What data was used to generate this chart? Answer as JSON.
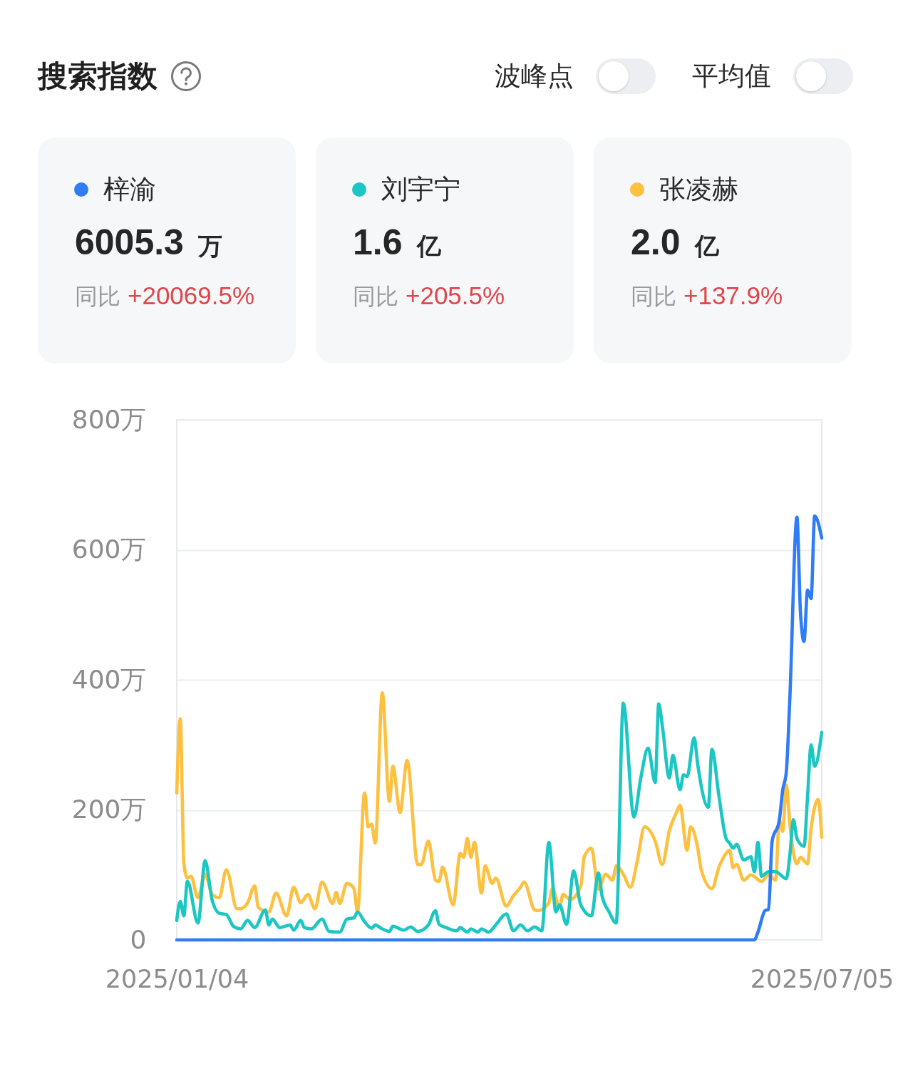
{
  "chart_data": {
    "type": "line",
    "title": "搜索指数",
    "annotations": [
      "波峰点",
      "平均值",
      "6005.3 万",
      "同比 +20069.5%",
      "1.6 亿",
      "同比 +205.5%",
      "2.0 亿",
      "同比 +137.9%"
    ],
    "xlim": [
      "2025-01-04",
      "2025-07-05"
    ],
    "xticks": [
      {
        "value": "2025-01-04",
        "label": "2025/01/04"
      },
      {
        "value": "2025-07-05",
        "label": "2025/07/05"
      }
    ],
    "ylim": [
      0,
      800
    ],
    "yticks": [
      0,
      {
        "value": 200,
        "label": "200万"
      },
      {
        "value": 400,
        "label": "400万"
      },
      {
        "value": 600,
        "label": "600万"
      },
      {
        "value": 800,
        "label": "800万"
      }
    ],
    "grid": "y",
    "legend": "top",
    "series": [
      {
        "name": "梓渝",
        "color": "#2f7cf6",
        "x": [
          "2025-01-04",
          "2025-06-16",
          "2025-06-17",
          "2025-06-19",
          "2025-06-20",
          "2025-06-21",
          "2025-06-23",
          "2025-06-24",
          "2025-06-25",
          "2025-06-26",
          "2025-06-28",
          "2025-06-29",
          "2025-06-30",
          "2025-07-01",
          "2025-07-02",
          "2025-07-03",
          "2025-07-05"
        ],
        "values": [
          0,
          0,
          12,
          45,
          47,
          152,
          183,
          231,
          258,
          372,
          650,
          503,
          459,
          538,
          525,
          652,
          618
        ]
      },
      {
        "name": "刘宇宁",
        "color": "#1cc6c3",
        "x": [
          "2025-01-04",
          "2025-01-05",
          "2025-01-06",
          "2025-01-07",
          "2025-01-10",
          "2025-01-12",
          "2025-01-14",
          "2025-01-16",
          "2025-01-18",
          "2025-01-20",
          "2025-01-22",
          "2025-01-24",
          "2025-01-26",
          "2025-01-29",
          "2025-01-30",
          "2025-01-31",
          "2025-02-02",
          "2025-02-05",
          "2025-02-06",
          "2025-02-08",
          "2025-02-09",
          "2025-02-11",
          "2025-02-14",
          "2025-02-16",
          "2025-02-19",
          "2025-02-21",
          "2025-02-23",
          "2025-02-24",
          "2025-02-26",
          "2025-02-28",
          "2025-03-01",
          "2025-03-03",
          "2025-03-05",
          "2025-03-06",
          "2025-03-09",
          "2025-03-11",
          "2025-03-13",
          "2025-03-16",
          "2025-03-18",
          "2025-03-19",
          "2025-03-21",
          "2025-03-24",
          "2025-03-25",
          "2025-03-27",
          "2025-03-28",
          "2025-03-30",
          "2025-03-31",
          "2025-04-02",
          "2025-04-04",
          "2025-04-07",
          "2025-04-09",
          "2025-04-11",
          "2025-04-13",
          "2025-04-15",
          "2025-04-17",
          "2025-04-19",
          "2025-04-21",
          "2025-04-22",
          "2025-04-24",
          "2025-04-26",
          "2025-04-28",
          "2025-05-01",
          "2025-05-03",
          "2025-05-04",
          "2025-05-06",
          "2025-05-08",
          "2025-05-10",
          "2025-05-13",
          "2025-05-15",
          "2025-05-17",
          "2025-05-19",
          "2025-05-20",
          "2025-05-21",
          "2025-05-23",
          "2025-05-24",
          "2025-05-26",
          "2025-05-27",
          "2025-05-28",
          "2025-05-30",
          "2025-05-31",
          "2025-06-03",
          "2025-06-04",
          "2025-06-06",
          "2025-06-08",
          "2025-06-09",
          "2025-06-10",
          "2025-06-11",
          "2025-06-13",
          "2025-06-15",
          "2025-06-16",
          "2025-06-17",
          "2025-06-18",
          "2025-06-20",
          "2025-06-22",
          "2025-06-25",
          "2025-06-26",
          "2025-06-27",
          "2025-06-28",
          "2025-06-30",
          "2025-07-01",
          "2025-07-02",
          "2025-07-03",
          "2025-07-05"
        ],
        "values": [
          30,
          59,
          37,
          90,
          26,
          122,
          61,
          41,
          39,
          21,
          17,
          30,
          19,
          46,
          23,
          32,
          19,
          23,
          15,
          30,
          19,
          17,
          32,
          13,
          12,
          32,
          34,
          43,
          28,
          18,
          23,
          17,
          13,
          21,
          15,
          20,
          13,
          23,
          45,
          24,
          19,
          14,
          19,
          12,
          17,
          12,
          17,
          12,
          23,
          40,
          14,
          23,
          14,
          20,
          14,
          150,
          43,
          54,
          24,
          106,
          54,
          37,
          103,
          68,
          43,
          26,
          364,
          189,
          251,
          295,
          242,
          363,
          330,
          249,
          284,
          231,
          254,
          251,
          311,
          270,
          204,
          293,
          221,
          156,
          149,
          141,
          147,
          123,
          128,
          105,
          150,
          98,
          105,
          105,
          94,
          130,
          185,
          156,
          144,
          221,
          300,
          267,
          319
        ]
      },
      {
        "name": "张凌赫",
        "color": "#fdc03f",
        "x": [
          "2025-01-04",
          "2025-01-05",
          "2025-01-06",
          "2025-01-07",
          "2025-01-08",
          "2025-01-10",
          "2025-01-12",
          "2025-01-14",
          "2025-01-16",
          "2025-01-18",
          "2025-01-21",
          "2025-01-22",
          "2025-01-24",
          "2025-01-26",
          "2025-01-27",
          "2025-01-30",
          "2025-02-01",
          "2025-02-04",
          "2025-02-06",
          "2025-02-08",
          "2025-02-10",
          "2025-02-12",
          "2025-02-14",
          "2025-02-17",
          "2025-02-18",
          "2025-02-19",
          "2025-02-21",
          "2025-02-23",
          "2025-02-24",
          "2025-02-26",
          "2025-02-27",
          "2025-02-28",
          "2025-03-01",
          "2025-03-03",
          "2025-03-05",
          "2025-03-06",
          "2025-03-08",
          "2025-03-10",
          "2025-03-13",
          "2025-03-14",
          "2025-03-16",
          "2025-03-18",
          "2025-03-19",
          "2025-03-20",
          "2025-03-23",
          "2025-03-25",
          "2025-03-26",
          "2025-03-27",
          "2025-03-28",
          "2025-03-29",
          "2025-03-31",
          "2025-04-01",
          "2025-04-03",
          "2025-04-04",
          "2025-04-07",
          "2025-04-09",
          "2025-04-11",
          "2025-04-12",
          "2025-04-15",
          "2025-04-16",
          "2025-04-19",
          "2025-04-20",
          "2025-04-22",
          "2025-04-23",
          "2025-04-25",
          "2025-04-28",
          "2025-04-29",
          "2025-05-01",
          "2025-05-03",
          "2025-05-05",
          "2025-05-07",
          "2025-05-08",
          "2025-05-10",
          "2025-05-12",
          "2025-05-14",
          "2025-05-16",
          "2025-05-19",
          "2025-05-21",
          "2025-05-23",
          "2025-05-25",
          "2025-05-26",
          "2025-05-28",
          "2025-05-29",
          "2025-05-31",
          "2025-06-01",
          "2025-06-04",
          "2025-06-06",
          "2025-06-08",
          "2025-06-09",
          "2025-06-10",
          "2025-06-11",
          "2025-06-13",
          "2025-06-15",
          "2025-06-18",
          "2025-06-20",
          "2025-06-22",
          "2025-06-23",
          "2025-06-24",
          "2025-06-25",
          "2025-06-26",
          "2025-06-28",
          "2025-06-29",
          "2025-07-01",
          "2025-07-02",
          "2025-07-04",
          "2025-07-05"
        ],
        "values": [
          226,
          340,
          119,
          95,
          98,
          65,
          101,
          70,
          65,
          108,
          48,
          48,
          57,
          83,
          50,
          43,
          72,
          37,
          81,
          57,
          70,
          48,
          89,
          56,
          73,
          56,
          87,
          79,
          43,
          226,
          174,
          178,
          149,
          380,
          213,
          267,
          196,
          276,
          116,
          116,
          152,
          92,
          90,
          112,
          54,
          133,
          127,
          156,
          127,
          150,
          72,
          114,
          87,
          95,
          52,
          68,
          81,
          89,
          46,
          45,
          57,
          79,
          50,
          70,
          62,
          83,
          128,
          141,
          78,
          101,
          92,
          114,
          101,
          81,
          123,
          174,
          152,
          116,
          168,
          196,
          207,
          138,
          174,
          141,
          108,
          79,
          112,
          133,
          138,
          111,
          116,
          92,
          100,
          90,
          100,
          92,
          185,
          167,
          238,
          178,
          117,
          127,
          117,
          171,
          216,
          158
        ]
      }
    ]
  }
}
